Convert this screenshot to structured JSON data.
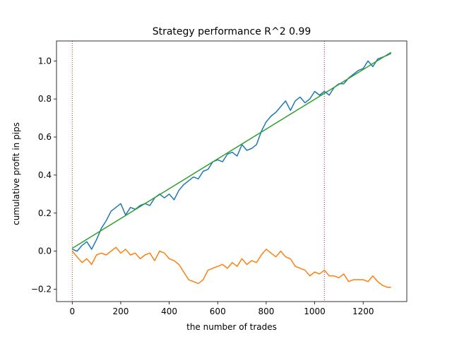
{
  "chart_data": {
    "type": "line",
    "title": "Strategy performance R^2 0.99",
    "xlabel": "the number of trades",
    "ylabel": "cumulative profit in pips",
    "xlim": [
      -65,
      1380
    ],
    "ylim": [
      -0.265,
      1.105
    ],
    "x_ticks": [
      0,
      200,
      400,
      600,
      800,
      1000,
      1200
    ],
    "x_tick_labels": [
      "0",
      "200",
      "400",
      "600",
      "800",
      "1000",
      "1200"
    ],
    "y_ticks": [
      -0.2,
      0.0,
      0.2,
      0.4,
      0.6,
      0.8,
      1.0
    ],
    "y_tick_labels": [
      "−0.2",
      "0.0",
      "0.2",
      "0.4",
      "0.6",
      "0.8",
      "1.0"
    ],
    "grid": false,
    "vlines": [
      {
        "x": 0,
        "color": "#d62728",
        "style": "dotted"
      },
      {
        "x": 1040,
        "color": "#8e1f7e",
        "style": "dotted"
      }
    ],
    "series": [
      {
        "color": "#1f77b4",
        "x": [
          0,
          20,
          40,
          60,
          80,
          100,
          120,
          140,
          160,
          180,
          200,
          220,
          240,
          260,
          280,
          300,
          320,
          340,
          360,
          380,
          400,
          420,
          440,
          460,
          480,
          500,
          520,
          540,
          560,
          580,
          600,
          620,
          640,
          660,
          680,
          700,
          720,
          740,
          760,
          780,
          800,
          820,
          840,
          860,
          880,
          900,
          920,
          940,
          960,
          980,
          1000,
          1020,
          1040,
          1060,
          1080,
          1100,
          1120,
          1140,
          1160,
          1180,
          1200,
          1220,
          1240,
          1260,
          1280,
          1300,
          1315
        ],
        "y": [
          0.01,
          0.0,
          0.03,
          0.05,
          0.01,
          0.06,
          0.12,
          0.16,
          0.21,
          0.23,
          0.25,
          0.19,
          0.23,
          0.22,
          0.24,
          0.25,
          0.24,
          0.28,
          0.3,
          0.28,
          0.3,
          0.27,
          0.32,
          0.35,
          0.37,
          0.39,
          0.38,
          0.42,
          0.43,
          0.47,
          0.48,
          0.47,
          0.51,
          0.52,
          0.5,
          0.56,
          0.53,
          0.54,
          0.56,
          0.63,
          0.68,
          0.71,
          0.73,
          0.76,
          0.79,
          0.74,
          0.79,
          0.81,
          0.78,
          0.8,
          0.84,
          0.82,
          0.84,
          0.82,
          0.86,
          0.88,
          0.88,
          0.91,
          0.93,
          0.95,
          0.96,
          1.0,
          0.97,
          1.01,
          1.02,
          1.03,
          1.04
        ]
      },
      {
        "color": "#ff7f0e",
        "x": [
          0,
          20,
          40,
          60,
          80,
          100,
          120,
          140,
          160,
          180,
          200,
          220,
          240,
          260,
          280,
          300,
          320,
          340,
          360,
          380,
          400,
          420,
          440,
          460,
          480,
          500,
          520,
          540,
          560,
          580,
          600,
          620,
          640,
          660,
          680,
          700,
          720,
          740,
          760,
          780,
          800,
          820,
          840,
          860,
          880,
          900,
          920,
          940,
          960,
          980,
          1000,
          1020,
          1040,
          1060,
          1080,
          1100,
          1120,
          1140,
          1160,
          1180,
          1200,
          1220,
          1240,
          1260,
          1280,
          1300,
          1315
        ],
        "y": [
          0.0,
          -0.03,
          -0.06,
          -0.04,
          -0.07,
          -0.02,
          -0.01,
          -0.02,
          0.0,
          0.02,
          -0.01,
          0.01,
          -0.02,
          -0.01,
          -0.04,
          -0.02,
          -0.01,
          -0.05,
          0.0,
          -0.01,
          -0.04,
          -0.05,
          -0.07,
          -0.11,
          -0.15,
          -0.16,
          -0.17,
          -0.15,
          -0.1,
          -0.09,
          -0.08,
          -0.07,
          -0.09,
          -0.06,
          -0.08,
          -0.04,
          -0.07,
          -0.05,
          -0.06,
          -0.02,
          0.01,
          -0.01,
          -0.03,
          -0.0,
          -0.03,
          -0.04,
          -0.08,
          -0.09,
          -0.1,
          -0.13,
          -0.11,
          -0.12,
          -0.1,
          -0.13,
          -0.13,
          -0.14,
          -0.12,
          -0.16,
          -0.15,
          -0.15,
          -0.15,
          -0.16,
          -0.13,
          -0.16,
          -0.18,
          -0.19,
          -0.19
        ]
      },
      {
        "color": "#2ca02c",
        "x": [
          0,
          1315
        ],
        "y": [
          0.015,
          1.045
        ]
      }
    ]
  }
}
